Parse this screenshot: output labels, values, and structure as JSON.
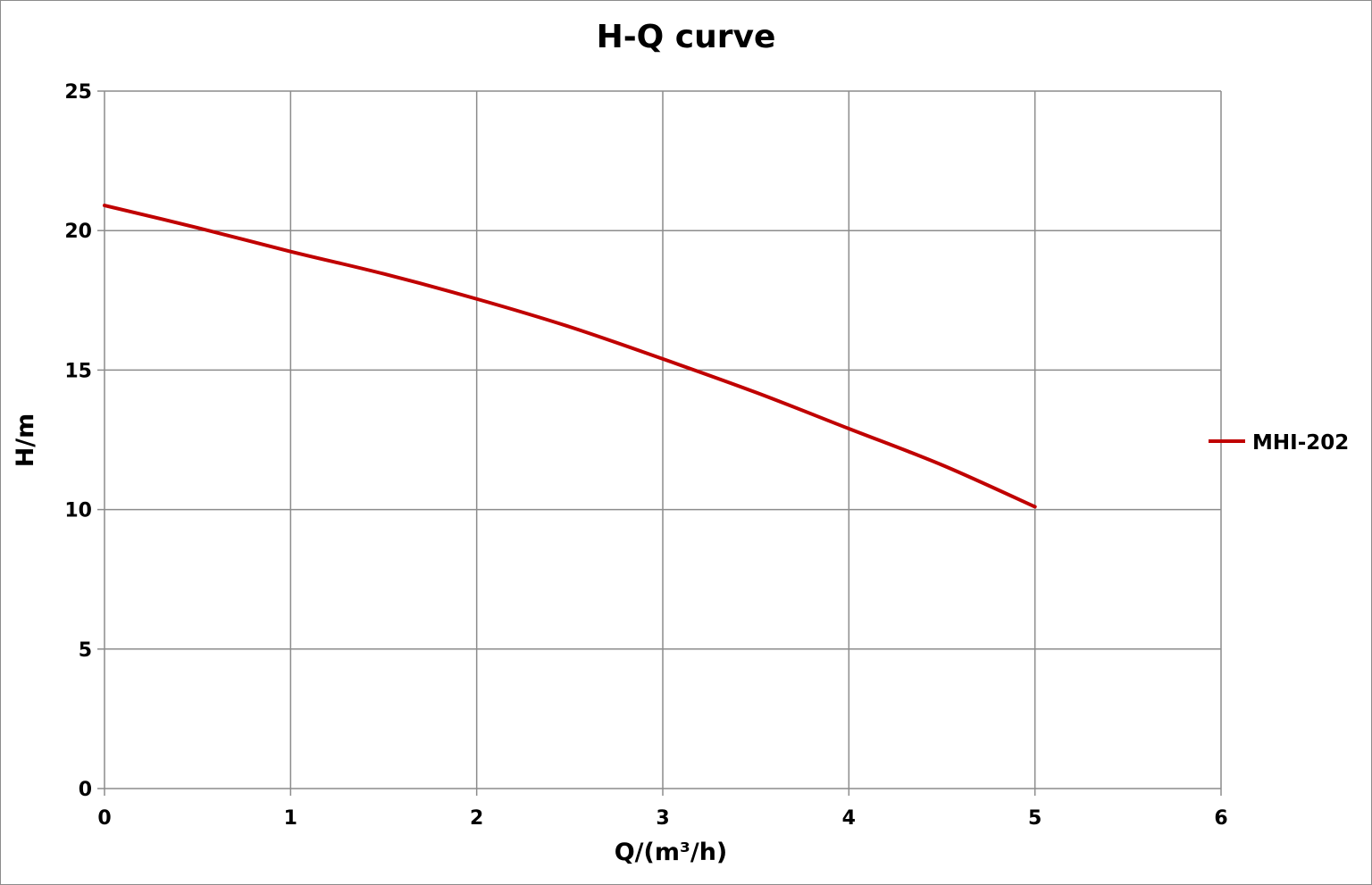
{
  "chart_data": {
    "type": "line",
    "title": "H-Q  curve",
    "xlabel": "Q/(m³/h)",
    "ylabel": "H/m",
    "xlim": [
      0,
      6
    ],
    "ylim": [
      0,
      25
    ],
    "x_ticks": [
      "0",
      "1",
      "2",
      "3",
      "4",
      "5",
      "6"
    ],
    "y_ticks": [
      "0",
      "5",
      "10",
      "15",
      "20",
      "25"
    ],
    "grid": true,
    "legend_position": "right",
    "series": [
      {
        "name": "MHI-202",
        "color": "#c00000",
        "points": [
          {
            "x": 0,
            "y": 20.9
          },
          {
            "x": 0.5,
            "y": 20.1
          },
          {
            "x": 1,
            "y": 19.25
          },
          {
            "x": 1.5,
            "y": 18.45
          },
          {
            "x": 2,
            "y": 17.55
          },
          {
            "x": 2.5,
            "y": 16.55
          },
          {
            "x": 3,
            "y": 15.4
          },
          {
            "x": 3.5,
            "y": 14.2
          },
          {
            "x": 4,
            "y": 12.9
          },
          {
            "x": 4.5,
            "y": 11.6
          },
          {
            "x": 5,
            "y": 10.1
          }
        ]
      }
    ]
  }
}
